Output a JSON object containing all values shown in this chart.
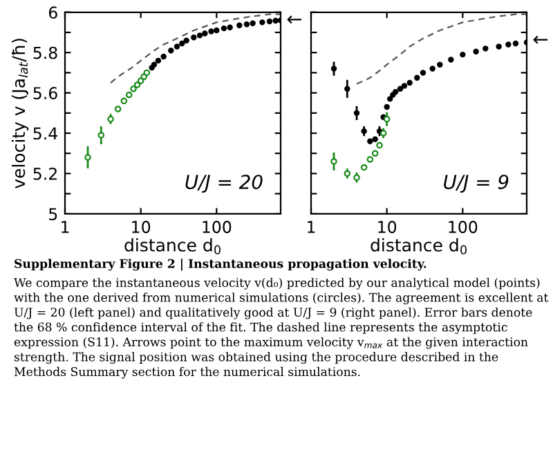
{
  "chart_data": [
    {
      "type": "scatter",
      "xlabel": "distance d$_{0}$",
      "ylabel": "velocity v (Ja$_{lat}$/ħ)",
      "xlim": [
        1,
        700
      ],
      "ylim": [
        5,
        6
      ],
      "log": "x",
      "xticks": [
        1,
        10,
        100
      ],
      "yticks": [
        5,
        {
          "value": 5.1,
          "label": null
        },
        5.2,
        {
          "value": 5.3,
          "label": null
        },
        5.4,
        {
          "value": 5.5,
          "label": null
        },
        5.6,
        {
          "value": 5.7,
          "label": null
        },
        5.8,
        {
          "value": 5.9,
          "label": null
        },
        6
      ],
      "grid": false,
      "legend": false,
      "series": [
        {
          "type": "line",
          "line_style": "dashed",
          "marker": "none",
          "color": "#555555",
          "x": [
            4,
            5,
            6,
            8,
            10,
            15,
            20,
            30,
            50,
            100,
            200,
            300,
            500,
            700
          ],
          "values": [
            5.65,
            5.68,
            5.7,
            5.73,
            5.76,
            5.81,
            5.84,
            5.87,
            5.91,
            5.95,
            5.97,
            5.98,
            5.99,
            5.99
          ]
        },
        {
          "marker": "circle",
          "color": "#000000",
          "x": [
            14,
            15,
            17,
            20,
            25,
            30,
            35,
            40,
            50,
            60,
            70,
            85,
            100,
            125,
            150,
            200,
            250,
            300,
            400,
            500,
            600,
            700
          ],
          "values": [
            5.725,
            5.74,
            5.76,
            5.78,
            5.81,
            5.83,
            5.845,
            5.86,
            5.875,
            5.885,
            5.895,
            5.905,
            5.91,
            5.92,
            5.925,
            5.935,
            5.94,
            5.945,
            5.95,
            5.955,
            5.958,
            5.96
          ]
        },
        {
          "marker": "circle",
          "color": "#1a8a1a",
          "x": [
            2,
            3,
            4,
            5,
            6,
            7,
            8,
            9,
            10,
            11,
            12
          ],
          "values": [
            5.28,
            5.39,
            5.47,
            5.52,
            5.56,
            5.59,
            5.62,
            5.64,
            5.66,
            5.68,
            5.7
          ],
          "errors": [
            0.05,
            0.04,
            0.02,
            null,
            null,
            null,
            null,
            null,
            null,
            null,
            null
          ]
        }
      ],
      "annotations": [
        {
          "text": "U/J = 20"
        },
        {
          "text": "←",
          "x": 700,
          "y": 5.96
        },
        "Supplementary Figure 2 | Instantaneous propagation velocity.",
        "We compare the instantaneous velocity v(d₀) predicted by our analytical model (points) with the one derived from numerical simulations (circles). The agreement is excellent at U/J = 20 (left panel) and qualitatively good at U/J = 9 (right panel). Error bars denote the 68 % confidence interval of the fit. The dashed line represents the asymptotic expression (S11). Arrows point to the maximum velocity v$_{max}$ at the given interaction strength. The signal position was obtained using the procedure described in the Methods Summary section for the numerical simulations."
      ]
    },
    {
      "type": "scatter",
      "xlabel": "distance d$_{0}$",
      "xlim": [
        1,
        700
      ],
      "ylim": [
        5,
        6
      ],
      "log": "x",
      "xticks": [
        1,
        10,
        100
      ],
      "yticks": [
        5,
        {
          "value": 5.1,
          "label": null
        },
        5.2,
        {
          "value": 5.3,
          "label": null
        },
        5.4,
        {
          "value": 5.5,
          "label": null
        },
        5.6,
        {
          "value": 5.7,
          "label": null
        },
        5.8,
        {
          "value": 5.9,
          "label": null
        },
        6
      ],
      "tick_labels": "x",
      "grid": false,
      "legend": false,
      "series": [
        {
          "type": "line",
          "line_style": "dashed",
          "marker": "none",
          "color": "#555555",
          "x": [
            4,
            5,
            6,
            8,
            10,
            15,
            20,
            30,
            50,
            100,
            200,
            300,
            500,
            700
          ],
          "values": [
            5.645,
            5.66,
            5.675,
            5.71,
            5.74,
            5.79,
            5.83,
            5.87,
            5.91,
            5.95,
            5.97,
            5.98,
            5.99,
            5.99
          ]
        },
        {
          "marker": "circle",
          "color": "#000000",
          "x": [
            2,
            3,
            4,
            5,
            6,
            7,
            8,
            9,
            10,
            11,
            12,
            13,
            15,
            17,
            20,
            25,
            30,
            40,
            50,
            70,
            100,
            150,
            200,
            300,
            400,
            500,
            700
          ],
          "values": [
            5.72,
            5.62,
            5.5,
            5.41,
            5.36,
            5.37,
            5.41,
            5.48,
            5.53,
            5.57,
            5.59,
            5.605,
            5.62,
            5.635,
            5.65,
            5.675,
            5.7,
            5.72,
            5.74,
            5.765,
            5.79,
            5.805,
            5.82,
            5.83,
            5.84,
            5.845,
            5.85
          ],
          "errors": [
            0.03,
            0.04,
            0.03,
            0.02,
            null,
            null,
            0.02,
            null,
            null,
            null,
            null,
            null,
            null,
            null,
            null,
            null,
            null,
            null,
            null,
            null,
            null,
            null,
            null,
            null,
            null,
            null,
            null
          ]
        },
        {
          "marker": "circle",
          "color": "#1a8a1a",
          "x": [
            2,
            3,
            4,
            5,
            6,
            7,
            8,
            9,
            10
          ],
          "values": [
            5.26,
            5.2,
            5.18,
            5.23,
            5.27,
            5.3,
            5.34,
            5.4,
            5.47
          ],
          "errors": [
            0.04,
            0.02,
            0.02,
            null,
            null,
            null,
            null,
            0.02,
            0.03
          ]
        }
      ],
      "annotations": [
        {
          "text": "U/J = 9"
        },
        {
          "text": "←",
          "x": 700,
          "y": 5.86
        }
      ]
    }
  ]
}
